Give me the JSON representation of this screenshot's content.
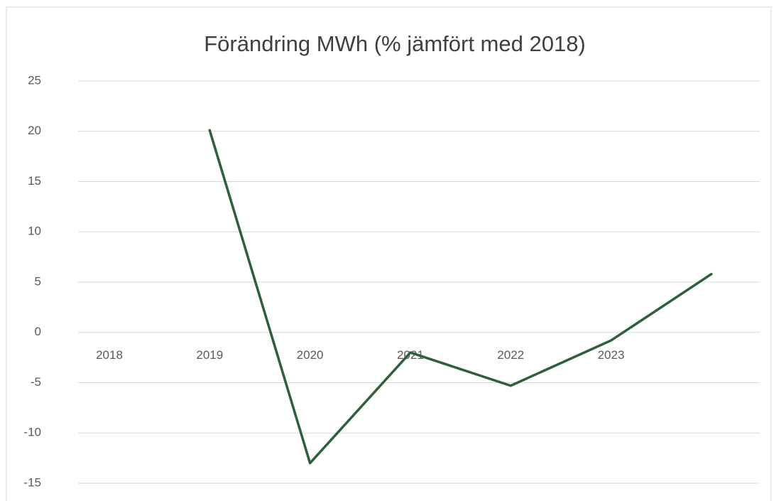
{
  "chart_data": {
    "type": "line",
    "title": "Förändring MWh (% jämfört med 2018)",
    "categories": [
      "2018",
      "2019",
      "2020",
      "2021",
      "2022",
      "2023",
      null
    ],
    "series": [
      {
        "name": "Förändring MWh",
        "color": "#2d5f3a",
        "values": [
          null,
          20.1,
          -13.0,
          -2.0,
          -5.3,
          -0.8,
          5.8
        ]
      }
    ],
    "ylim": [
      -15,
      25
    ],
    "yticks": [
      -15,
      -10,
      -5,
      0,
      5,
      10,
      15,
      20,
      25
    ],
    "grid": true
  }
}
